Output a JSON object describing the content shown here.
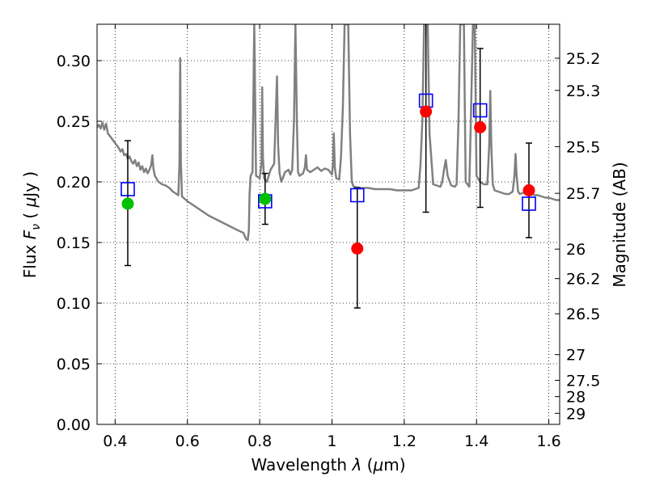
{
  "chart_data": {
    "type": "scatter",
    "title": "",
    "xlabel": "Wavelength",
    "xlabel_symbol": "λ",
    "xlabel_unit_open": " (",
    "xlabel_unit_mu": "μ",
    "xlabel_unit_rest": "m)",
    "ylabel_left": "Flux",
    "ylabel_left_symbol": "F",
    "ylabel_left_subscript": "ν",
    "ylabel_left_unit_open": "(",
    "ylabel_left_unit_mu": "μ",
    "ylabel_left_unit_rest": "Jy )",
    "ylabel_right": "Magnitude (AB)",
    "xlim": [
      0.35,
      1.63
    ],
    "ylim": [
      0.0,
      0.33
    ],
    "grid": true,
    "x_ticks": [
      0.4,
      0.6,
      0.8,
      1.0,
      1.2,
      1.4,
      1.6
    ],
    "x_tick_labels": [
      "0.4",
      "0.6",
      "0.8",
      "1",
      "1.2",
      "1.4",
      "1.6"
    ],
    "y_ticks": [
      0.0,
      0.05,
      0.1,
      0.15,
      0.2,
      0.25,
      0.3
    ],
    "y_tick_labels": [
      "0.00",
      "0.05",
      "0.10",
      "0.15",
      "0.20",
      "0.25",
      "0.30"
    ],
    "right_ticks": [
      {
        "mag": 25.2,
        "label": "25.2"
      },
      {
        "mag": 25.3,
        "label": "25.3"
      },
      {
        "mag": 25.5,
        "label": "25.5"
      },
      {
        "mag": 25.7,
        "label": "25.7"
      },
      {
        "mag": 26.0,
        "label": "26"
      },
      {
        "mag": 26.2,
        "label": "26.2"
      },
      {
        "mag": 26.5,
        "label": "26.5"
      },
      {
        "mag": 27.0,
        "label": "27"
      },
      {
        "mag": 27.5,
        "label": "27.5"
      },
      {
        "mag": 28.0,
        "label": "28"
      },
      {
        "mag": 29.0,
        "label": "29"
      }
    ],
    "series": [
      {
        "kind": "model_spectrum",
        "color": "#808080",
        "points": [
          [
            0.35,
            0.245
          ],
          [
            0.355,
            0.247
          ],
          [
            0.36,
            0.244
          ],
          [
            0.365,
            0.249
          ],
          [
            0.37,
            0.243
          ],
          [
            0.375,
            0.248
          ],
          [
            0.38,
            0.24
          ],
          [
            0.39,
            0.236
          ],
          [
            0.4,
            0.232
          ],
          [
            0.41,
            0.228
          ],
          [
            0.415,
            0.225
          ],
          [
            0.42,
            0.227
          ],
          [
            0.425,
            0.222
          ],
          [
            0.43,
            0.223
          ],
          [
            0.435,
            0.219
          ],
          [
            0.44,
            0.221
          ],
          [
            0.445,
            0.217
          ],
          [
            0.45,
            0.215
          ],
          [
            0.455,
            0.218
          ],
          [
            0.46,
            0.213
          ],
          [
            0.465,
            0.216
          ],
          [
            0.47,
            0.21
          ],
          [
            0.475,
            0.213
          ],
          [
            0.48,
            0.208
          ],
          [
            0.485,
            0.211
          ],
          [
            0.49,
            0.207
          ],
          [
            0.495,
            0.21
          ],
          [
            0.5,
            0.214
          ],
          [
            0.503,
            0.222
          ],
          [
            0.506,
            0.211
          ],
          [
            0.51,
            0.205
          ],
          [
            0.52,
            0.2
          ],
          [
            0.53,
            0.198
          ],
          [
            0.54,
            0.197
          ],
          [
            0.55,
            0.195
          ],
          [
            0.56,
            0.192
          ],
          [
            0.57,
            0.19
          ],
          [
            0.575,
            0.189
          ],
          [
            0.578,
            0.215
          ],
          [
            0.58,
            0.302
          ],
          [
            0.582,
            0.215
          ],
          [
            0.585,
            0.188
          ],
          [
            0.6,
            0.184
          ],
          [
            0.62,
            0.18
          ],
          [
            0.64,
            0.176
          ],
          [
            0.66,
            0.172
          ],
          [
            0.68,
            0.169
          ],
          [
            0.7,
            0.166
          ],
          [
            0.72,
            0.163
          ],
          [
            0.74,
            0.16
          ],
          [
            0.755,
            0.158
          ],
          [
            0.762,
            0.153
          ],
          [
            0.767,
            0.152
          ],
          [
            0.77,
            0.16
          ],
          [
            0.772,
            0.19
          ],
          [
            0.775,
            0.205
          ],
          [
            0.78,
            0.208
          ],
          [
            0.785,
            0.33
          ],
          [
            0.79,
            0.205
          ],
          [
            0.8,
            0.203
          ],
          [
            0.805,
            0.215
          ],
          [
            0.807,
            0.278
          ],
          [
            0.809,
            0.22
          ],
          [
            0.812,
            0.203
          ],
          [
            0.82,
            0.2
          ],
          [
            0.83,
            0.21
          ],
          [
            0.84,
            0.215
          ],
          [
            0.845,
            0.26
          ],
          [
            0.848,
            0.287
          ],
          [
            0.851,
            0.23
          ],
          [
            0.855,
            0.207
          ],
          [
            0.86,
            0.2
          ],
          [
            0.87,
            0.208
          ],
          [
            0.88,
            0.21
          ],
          [
            0.885,
            0.206
          ],
          [
            0.89,
            0.21
          ],
          [
            0.895,
            0.25
          ],
          [
            0.899,
            0.33
          ],
          [
            0.903,
            0.25
          ],
          [
            0.906,
            0.208
          ],
          [
            0.91,
            0.205
          ],
          [
            0.92,
            0.207
          ],
          [
            0.925,
            0.212
          ],
          [
            0.928,
            0.222
          ],
          [
            0.931,
            0.21
          ],
          [
            0.94,
            0.208
          ],
          [
            0.95,
            0.21
          ],
          [
            0.96,
            0.212
          ],
          [
            0.97,
            0.209
          ],
          [
            0.98,
            0.211
          ],
          [
            0.99,
            0.21
          ],
          [
            1.0,
            0.206
          ],
          [
            1.003,
            0.215
          ],
          [
            1.005,
            0.24
          ],
          [
            1.008,
            0.212
          ],
          [
            1.012,
            0.203
          ],
          [
            1.02,
            0.202
          ],
          [
            1.025,
            0.22
          ],
          [
            1.03,
            0.26
          ],
          [
            1.035,
            0.33
          ],
          [
            1.045,
            0.33
          ],
          [
            1.05,
            0.24
          ],
          [
            1.055,
            0.2
          ],
          [
            1.06,
            0.196
          ],
          [
            1.08,
            0.195
          ],
          [
            1.1,
            0.195
          ],
          [
            1.12,
            0.194
          ],
          [
            1.14,
            0.194
          ],
          [
            1.16,
            0.194
          ],
          [
            1.18,
            0.193
          ],
          [
            1.2,
            0.193
          ],
          [
            1.22,
            0.193
          ],
          [
            1.24,
            0.195
          ],
          [
            1.245,
            0.215
          ],
          [
            1.25,
            0.25
          ],
          [
            1.255,
            0.33
          ],
          [
            1.265,
            0.33
          ],
          [
            1.27,
            0.24
          ],
          [
            1.28,
            0.198
          ],
          [
            1.3,
            0.196
          ],
          [
            1.305,
            0.2
          ],
          [
            1.31,
            0.21
          ],
          [
            1.315,
            0.218
          ],
          [
            1.32,
            0.205
          ],
          [
            1.33,
            0.197
          ],
          [
            1.34,
            0.196
          ],
          [
            1.345,
            0.198
          ],
          [
            1.35,
            0.25
          ],
          [
            1.355,
            0.33
          ],
          [
            1.365,
            0.33
          ],
          [
            1.37,
            0.2
          ],
          [
            1.38,
            0.196
          ],
          [
            1.385,
            0.26
          ],
          [
            1.39,
            0.33
          ],
          [
            1.395,
            0.33
          ],
          [
            1.4,
            0.205
          ],
          [
            1.41,
            0.2
          ],
          [
            1.42,
            0.198
          ],
          [
            1.43,
            0.198
          ],
          [
            1.435,
            0.23
          ],
          [
            1.438,
            0.275
          ],
          [
            1.441,
            0.23
          ],
          [
            1.445,
            0.198
          ],
          [
            1.45,
            0.193
          ],
          [
            1.46,
            0.192
          ],
          [
            1.47,
            0.191
          ],
          [
            1.48,
            0.19
          ],
          [
            1.49,
            0.19
          ],
          [
            1.5,
            0.192
          ],
          [
            1.505,
            0.205
          ],
          [
            1.508,
            0.223
          ],
          [
            1.511,
            0.205
          ],
          [
            1.515,
            0.192
          ],
          [
            1.52,
            0.19
          ],
          [
            1.53,
            0.191
          ],
          [
            1.54,
            0.193
          ],
          [
            1.55,
            0.191
          ],
          [
            1.56,
            0.189
          ],
          [
            1.57,
            0.189
          ],
          [
            1.58,
            0.188
          ],
          [
            1.59,
            0.187
          ],
          [
            1.6,
            0.187
          ],
          [
            1.61,
            0.186
          ],
          [
            1.62,
            0.185
          ],
          [
            1.63,
            0.185
          ]
        ]
      },
      {
        "kind": "model_photometry",
        "marker": "open-square",
        "color": "#0000ff",
        "points": [
          {
            "x": 0.435,
            "y": 0.194
          },
          {
            "x": 0.815,
            "y": 0.184
          },
          {
            "x": 1.07,
            "y": 0.189
          },
          {
            "x": 1.26,
            "y": 0.267
          },
          {
            "x": 1.41,
            "y": 0.259
          },
          {
            "x": 1.545,
            "y": 0.182
          }
        ]
      },
      {
        "kind": "observed_photometry",
        "marker": "filled-circle",
        "points": [
          {
            "x": 0.435,
            "y": 0.182,
            "yerr_low": 0.131,
            "yerr_high": 0.234,
            "color": "#00c000"
          },
          {
            "x": 0.815,
            "y": 0.186,
            "yerr_low": 0.165,
            "yerr_high": 0.207,
            "color": "#00c000"
          },
          {
            "x": 1.07,
            "y": 0.145,
            "yerr_low": 0.096,
            "yerr_high": 0.195,
            "color": "#ff0000"
          },
          {
            "x": 1.26,
            "y": 0.258,
            "yerr_low": 0.175,
            "yerr_high": 0.33,
            "color": "#ff0000"
          },
          {
            "x": 1.41,
            "y": 0.245,
            "yerr_low": 0.179,
            "yerr_high": 0.31,
            "color": "#ff0000"
          },
          {
            "x": 1.545,
            "y": 0.193,
            "yerr_low": 0.154,
            "yerr_high": 0.232,
            "color": "#ff0000"
          }
        ]
      }
    ]
  }
}
